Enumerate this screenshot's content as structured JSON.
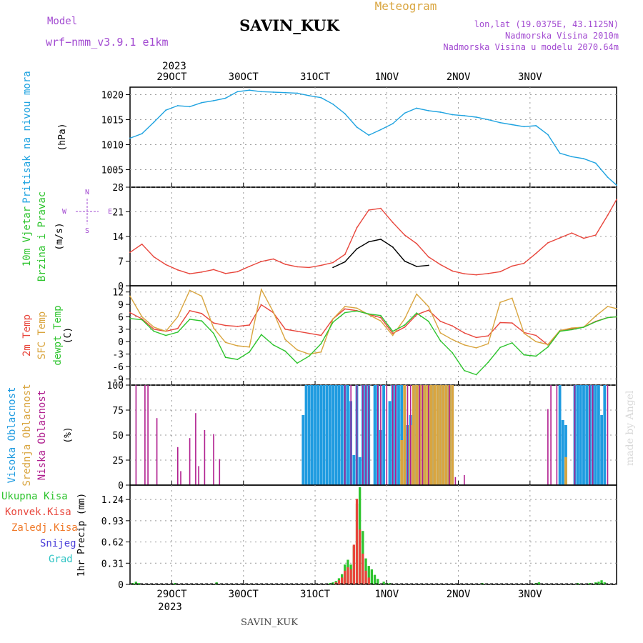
{
  "header": {
    "model_label": "Model",
    "model_name": "wrf−nmm_v3.9.1  e1km",
    "station": "SAVIN_KUK",
    "chart_title": "Meteogram",
    "coords": "lon,lat (19.0375E, 43.1125N)",
    "elevation": "Nadmorska Visina 2010m",
    "model_elevation": "Nadmorska Visina u modelu 2070.64m",
    "watermark": "made by Angel",
    "footer_station": "SAVIN_KUK"
  },
  "time_axis": {
    "year": "2023",
    "dates": [
      "29OCT",
      "30OCT",
      "31OCT",
      "1NOV",
      "2NOV",
      "3NOV"
    ],
    "range_hours": [
      -14,
      149
    ],
    "date_hours": [
      0,
      24,
      48,
      72,
      96,
      120
    ]
  },
  "colors": {
    "pressure": "#1fa3e0",
    "temp_2m": "#e8463c",
    "temp_sfc": "#d9a53f",
    "dewpoint": "#2ec42e",
    "high_cloud": "#1f9be0",
    "mid_cloud": "#d9a53f",
    "low_cloud": "#b01f8f",
    "total_precip": "#2ec42e",
    "conv_precip": "#e8463c",
    "frozen_precip": "#f07a2a",
    "snow": "#4b3fd9",
    "graupel": "#2fc4c4",
    "purple_text": "#a24ad1",
    "title_gold": "#d9a53f"
  },
  "chart_data": [
    {
      "type": "line",
      "title": "",
      "ylabel": "(hPa)",
      "side_labels": [
        "Pritisak na nivou mora"
      ],
      "ylim": [
        1001.5,
        1021.5
      ],
      "yticks": [
        1005,
        1010,
        1015,
        1020
      ],
      "grid": true,
      "series": [
        {
          "name": "Pritisak na nivou mora",
          "color_key": "pressure",
          "x": [
            -14,
            -10,
            -6,
            -2,
            2,
            6,
            10,
            14,
            18,
            22,
            26,
            30,
            34,
            38,
            42,
            46,
            50,
            54,
            58,
            62,
            66,
            70,
            74,
            78,
            82,
            86,
            90,
            94,
            98,
            102,
            106,
            110,
            114,
            118,
            122,
            126,
            130,
            134,
            138,
            142,
            146,
            149
          ],
          "y": [
            1011.3,
            1012.2,
            1014.5,
            1016.9,
            1017.8,
            1017.6,
            1018.4,
            1018.8,
            1019.3,
            1020.6,
            1020.9,
            1020.6,
            1020.5,
            1020.4,
            1020.3,
            1019.8,
            1019.4,
            1018.1,
            1016.2,
            1013.5,
            1011.9,
            1013.0,
            1014.2,
            1016.3,
            1017.3,
            1016.8,
            1016.5,
            1016.0,
            1015.8,
            1015.5,
            1015.0,
            1014.4,
            1014.0,
            1013.6,
            1013.8,
            1012.0,
            1008.3,
            1007.6,
            1007.2,
            1006.3,
            1003.5,
            1001.9
          ]
        }
      ]
    },
    {
      "type": "line",
      "title": "",
      "ylabel": "(m/s)",
      "side_labels": [
        "10m Vjetar",
        "Brzina i Pravac"
      ],
      "compass_labels": [
        "N",
        "S",
        "E",
        "W"
      ],
      "ylim": [
        0,
        28
      ],
      "yticks": [
        0,
        7,
        14,
        21,
        28
      ],
      "grid": true,
      "series": [
        {
          "name": "10m Vjetar",
          "color_key": "temp_2m",
          "x": [
            -14,
            -10,
            -6,
            -2,
            2,
            6,
            10,
            14,
            18,
            22,
            26,
            30,
            34,
            38,
            42,
            46,
            50,
            54,
            58,
            62,
            66,
            70,
            74,
            78,
            82,
            86,
            90,
            94,
            98,
            102,
            106,
            110,
            114,
            118,
            122,
            126,
            130,
            134,
            138,
            142,
            146,
            149
          ],
          "y": [
            9.5,
            11.8,
            8.2,
            6.0,
            4.5,
            3.4,
            3.9,
            4.6,
            3.5,
            4.0,
            5.5,
            6.9,
            7.6,
            6.1,
            5.4,
            5.2,
            5.8,
            6.6,
            8.9,
            16.5,
            21.5,
            22.0,
            18.0,
            14.4,
            12.0,
            8.2,
            6.0,
            4.2,
            3.4,
            3.1,
            3.5,
            4.0,
            5.6,
            6.4,
            9.2,
            12.2,
            13.6,
            15.0,
            13.5,
            14.4,
            20.0,
            24.5
          ]
        },
        {
          "name": "",
          "color_key": "black",
          "x": [
            54,
            58,
            62,
            66,
            70,
            74,
            78,
            82,
            86
          ],
          "y": [
            5.2,
            6.8,
            10.5,
            12.5,
            13.2,
            11.0,
            7.0,
            5.5,
            5.8
          ]
        }
      ]
    },
    {
      "type": "line",
      "title": "",
      "ylabel": "(C)",
      "side_labels": [
        "2m Temp",
        "SFC Temp",
        "dewpt Temp"
      ],
      "ylim": [
        -10.5,
        13.5
      ],
      "yticks": [
        -9,
        -6,
        -3,
        0,
        3,
        6,
        9,
        12
      ],
      "grid": true,
      "series": [
        {
          "name": "2m Temp",
          "color_key": "temp_2m",
          "x": [
            -14,
            -10,
            -6,
            -2,
            2,
            6,
            10,
            14,
            18,
            22,
            26,
            30,
            34,
            38,
            42,
            46,
            50,
            54,
            58,
            62,
            66,
            70,
            74,
            78,
            82,
            86,
            90,
            94,
            98,
            102,
            106,
            110,
            114,
            118,
            122,
            126,
            130,
            134,
            138,
            142,
            146,
            149
          ],
          "y": [
            7.0,
            5.5,
            3.0,
            2.5,
            3.2,
            7.5,
            6.8,
            4.5,
            3.9,
            3.7,
            4.0,
            8.9,
            7.0,
            3.0,
            2.5,
            2.0,
            1.5,
            5.5,
            7.9,
            7.5,
            6.6,
            5.8,
            2.0,
            3.5,
            6.5,
            7.6,
            4.9,
            3.8,
            2.1,
            1.0,
            1.4,
            4.6,
            4.5,
            2.2,
            1.5,
            -0.8,
            2.5,
            3.1,
            3.5,
            4.9,
            5.8,
            6.0
          ]
        },
        {
          "name": "SFC Temp",
          "color_key": "temp_sfc",
          "x": [
            -14,
            -10,
            -6,
            -2,
            2,
            6,
            10,
            14,
            18,
            22,
            26,
            30,
            34,
            38,
            42,
            46,
            50,
            54,
            58,
            62,
            66,
            70,
            74,
            78,
            82,
            86,
            90,
            94,
            98,
            102,
            106,
            110,
            114,
            118,
            122,
            126,
            130,
            134,
            138,
            142,
            146,
            149
          ],
          "y": [
            11.0,
            6.0,
            3.5,
            2.5,
            6.0,
            12.4,
            11.0,
            3.3,
            -0.2,
            -1.0,
            -1.3,
            12.6,
            7.2,
            0.5,
            -2.0,
            -3.0,
            -2.5,
            5.5,
            8.5,
            8.1,
            6.5,
            5.0,
            1.5,
            5.5,
            11.5,
            8.5,
            2.1,
            0.5,
            -0.8,
            -1.5,
            -0.5,
            9.5,
            10.5,
            2.0,
            0.0,
            -0.7,
            2.7,
            3.3,
            3.5,
            6.2,
            8.5,
            8.0
          ]
        },
        {
          "name": "dewpt Temp",
          "color_key": "dewpoint",
          "x": [
            -14,
            -10,
            -6,
            -2,
            2,
            6,
            10,
            14,
            18,
            22,
            26,
            30,
            34,
            38,
            42,
            46,
            50,
            54,
            58,
            62,
            66,
            70,
            74,
            78,
            82,
            86,
            90,
            94,
            98,
            102,
            106,
            110,
            114,
            118,
            122,
            126,
            130,
            134,
            138,
            142,
            146,
            149
          ],
          "y": [
            5.6,
            5.3,
            2.5,
            1.5,
            2.3,
            5.4,
            5.0,
            2.0,
            -3.8,
            -4.3,
            -2.5,
            1.7,
            -0.8,
            -2.3,
            -5.2,
            -3.5,
            -0.5,
            4.7,
            7.0,
            7.4,
            6.7,
            6.3,
            2.5,
            4.0,
            6.9,
            4.9,
            0.2,
            -2.7,
            -7.0,
            -8.0,
            -5.0,
            -1.4,
            -0.3,
            -3.2,
            -3.5,
            -1.3,
            2.5,
            2.9,
            3.5,
            4.8,
            5.8,
            6.0
          ]
        }
      ]
    },
    {
      "type": "bar",
      "title": "",
      "ylabel": "(%)",
      "side_labels": [
        "Visoka Oblacnost",
        "Srednja Oblacnost",
        "Niska Oblacnost"
      ],
      "ylim": [
        0,
        100
      ],
      "yticks": [
        0,
        25,
        50,
        75,
        100
      ],
      "grid": true,
      "series": [
        {
          "name": "Visoka Oblacnost",
          "color_key": "high_cloud",
          "x": [
            44,
            45,
            46,
            47,
            48,
            49,
            50,
            51,
            52,
            53,
            54,
            55,
            56,
            57,
            58,
            59,
            60,
            61,
            62,
            63,
            64,
            65,
            66,
            68,
            69,
            70,
            71,
            73,
            74,
            75,
            76,
            77,
            78,
            79,
            80,
            81,
            82,
            83,
            84,
            85,
            86,
            87,
            88,
            89,
            90,
            91,
            92,
            93,
            94,
            130,
            131,
            132,
            135,
            136,
            137,
            138,
            139,
            140,
            141,
            142,
            143,
            144,
            145
          ],
          "y": [
            70,
            100,
            100,
            100,
            100,
            100,
            100,
            100,
            100,
            100,
            100,
            100,
            100,
            100,
            100,
            100,
            84,
            30,
            100,
            28,
            100,
            100,
            100,
            100,
            100,
            55,
            100,
            84,
            100,
            100,
            100,
            100,
            100,
            60,
            70,
            100,
            100,
            100,
            100,
            100,
            100,
            100,
            100,
            100,
            100,
            100,
            100,
            100,
            100,
            100,
            65,
            60,
            100,
            100,
            100,
            100,
            100,
            100,
            100,
            100,
            100,
            70,
            100
          ]
        },
        {
          "name": "Srednja Oblacnost",
          "color_key": "mid_cloud",
          "x": [
            77,
            78,
            80,
            81,
            82,
            83,
            84,
            85,
            86,
            87,
            88,
            89,
            90,
            91,
            92,
            93,
            94,
            132
          ],
          "y": [
            45,
            100,
            60,
            100,
            100,
            100,
            100,
            100,
            100,
            100,
            100,
            100,
            100,
            100,
            100,
            100,
            100,
            28
          ]
        },
        {
          "name": "Niska Oblacnost",
          "color_key": "low_cloud",
          "x": [
            -12,
            -9,
            -8,
            -5,
            2,
            3,
            6,
            8,
            9,
            11,
            14,
            16,
            58,
            60,
            62,
            64,
            65,
            66,
            69,
            70,
            72,
            74,
            75,
            79,
            80,
            83,
            84,
            86,
            93,
            95,
            98,
            126,
            127,
            129,
            135,
            140,
            141,
            146
          ],
          "y": [
            100,
            100,
            100,
            67,
            38,
            14,
            47,
            72,
            19,
            55,
            51,
            26,
            100,
            100,
            100,
            100,
            100,
            100,
            100,
            100,
            100,
            100,
            100,
            100,
            100,
            100,
            100,
            100,
            100,
            8,
            10,
            76,
            100,
            100,
            100,
            100,
            100,
            100
          ]
        }
      ]
    },
    {
      "type": "bar",
      "title": "",
      "ylabel": "1hr Precip (mm)",
      "side_labels": [
        "Ukupna Kisa",
        "Konvek.Kisa",
        "Zaledj.Kisa",
        "Snijeg",
        "Grad"
      ],
      "ylim": [
        0,
        1.45
      ],
      "yticks": [
        0,
        0.31,
        0.62,
        0.93,
        1.24
      ],
      "grid": true,
      "series": [
        {
          "name": "Ukupna Kisa",
          "color_key": "total_precip",
          "x": [
            -13,
            -12,
            -11,
            1,
            15,
            53,
            54,
            55,
            56,
            57,
            58,
            59,
            60,
            61,
            62,
            63,
            64,
            65,
            66,
            67,
            68,
            69,
            71,
            72,
            73,
            104,
            122,
            123,
            136,
            140,
            142,
            143,
            144,
            145
          ],
          "y": [
            0.02,
            0.04,
            0.02,
            0.02,
            0.03,
            0.02,
            0.03,
            0.05,
            0.09,
            0.15,
            0.29,
            0.36,
            0.29,
            0.56,
            1.18,
            1.42,
            0.78,
            0.38,
            0.27,
            0.22,
            0.14,
            0.08,
            0.04,
            0.02,
            0.02,
            0.02,
            0.02,
            0.03,
            0.02,
            0.02,
            0.03,
            0.04,
            0.06,
            0.03
          ]
        },
        {
          "name": "Konvek.Kisa",
          "color_key": "conv_precip",
          "x": [
            55,
            56,
            57,
            58,
            59,
            60,
            61,
            62,
            63,
            64,
            65,
            66
          ],
          "y": [
            0.03,
            0.06,
            0.1,
            0.2,
            0.25,
            0.22,
            0.58,
            1.25,
            0.8,
            0.45,
            0.2,
            0.1
          ]
        }
      ]
    }
  ]
}
